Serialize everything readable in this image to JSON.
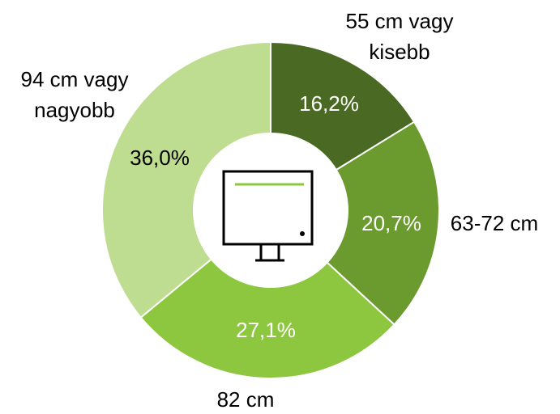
{
  "chart_data": {
    "type": "donut",
    "categories": [
      "55 cm vagy\nkisebb",
      "63-72 cm",
      "82 cm",
      "94 cm vagy\nnagyobb"
    ],
    "values": [
      16.2,
      20.7,
      27.1,
      36.0
    ],
    "value_labels": [
      "16,2%",
      "20,7%",
      "27,1%",
      "36,0%"
    ],
    "colors": [
      "#4a6a23",
      "#6b9a2f",
      "#8dc63f",
      "#bedd90"
    ]
  }
}
